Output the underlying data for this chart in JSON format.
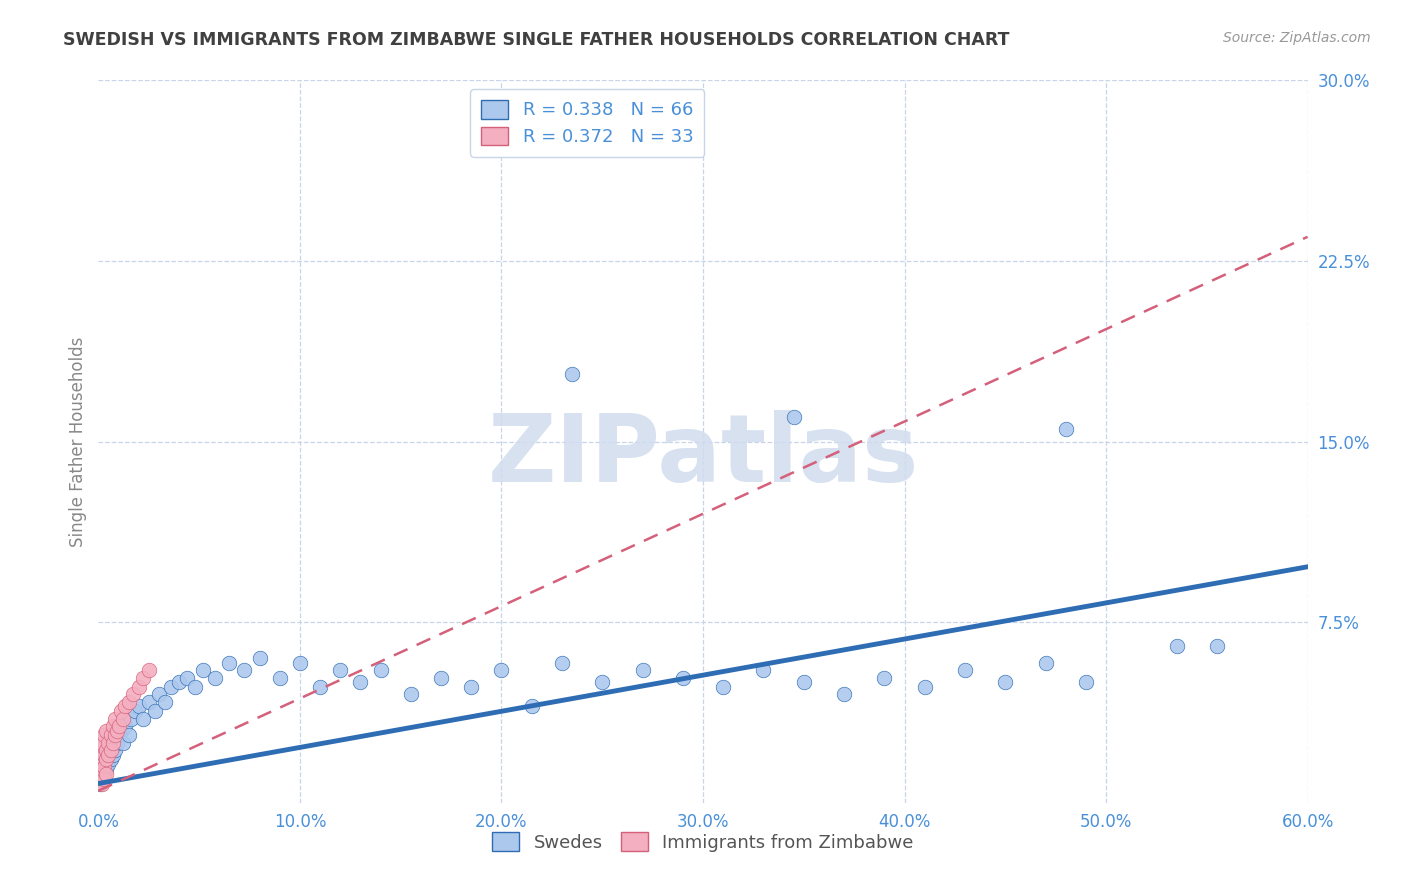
{
  "title": "SWEDISH VS IMMIGRANTS FROM ZIMBABWE SINGLE FATHER HOUSEHOLDS CORRELATION CHART",
  "source": "Source: ZipAtlas.com",
  "ylabel": "Single Father Households",
  "R1": 0.338,
  "N1": 66,
  "R2": 0.372,
  "N2": 33,
  "legend_label_1": "Swedes",
  "legend_label_2": "Immigrants from Zimbabwe",
  "color1": "#adc8ed",
  "color2": "#f4afc0",
  "line_color1": "#2e6db4",
  "line_color2": "#d4607a",
  "background_color": "#ffffff",
  "grid_color": "#c8d4e8",
  "title_color": "#404040",
  "axis_color": "#4a90d9",
  "source_color": "#999999",
  "ylabel_color": "#888888",
  "watermark_color": "#d0dcee",
  "xlim": [
    0.0,
    0.6
  ],
  "ylim": [
    0.0,
    0.3
  ],
  "xticks": [
    0.0,
    0.1,
    0.2,
    0.3,
    0.4,
    0.5,
    0.6
  ],
  "yticks": [
    0.075,
    0.15,
    0.225,
    0.3
  ],
  "blue_line_x": [
    0.0,
    0.6
  ],
  "blue_line_y": [
    0.008,
    0.098
  ],
  "pink_line_x": [
    0.0,
    0.6
  ],
  "pink_line_y": [
    0.005,
    0.235
  ],
  "sx": [
    0.001,
    0.001,
    0.002,
    0.002,
    0.003,
    0.003,
    0.004,
    0.004,
    0.005,
    0.005,
    0.006,
    0.007,
    0.008,
    0.009,
    0.01,
    0.011,
    0.012,
    0.013,
    0.015,
    0.016,
    0.018,
    0.02,
    0.022,
    0.025,
    0.028,
    0.03,
    0.033,
    0.036,
    0.04,
    0.044,
    0.048,
    0.052,
    0.058,
    0.065,
    0.072,
    0.08,
    0.09,
    0.1,
    0.11,
    0.12,
    0.13,
    0.14,
    0.155,
    0.17,
    0.185,
    0.2,
    0.215,
    0.23,
    0.25,
    0.27,
    0.29,
    0.31,
    0.33,
    0.35,
    0.37,
    0.39,
    0.41,
    0.43,
    0.45,
    0.47,
    0.49,
    0.535,
    0.555,
    0.235,
    0.345,
    0.48
  ],
  "sy": [
    0.008,
    0.012,
    0.01,
    0.015,
    0.012,
    0.018,
    0.014,
    0.02,
    0.016,
    0.022,
    0.018,
    0.02,
    0.022,
    0.025,
    0.028,
    0.03,
    0.025,
    0.032,
    0.028,
    0.035,
    0.038,
    0.04,
    0.035,
    0.042,
    0.038,
    0.045,
    0.042,
    0.048,
    0.05,
    0.052,
    0.048,
    0.055,
    0.052,
    0.058,
    0.055,
    0.06,
    0.052,
    0.058,
    0.048,
    0.055,
    0.05,
    0.055,
    0.045,
    0.052,
    0.048,
    0.055,
    0.04,
    0.058,
    0.05,
    0.055,
    0.052,
    0.048,
    0.055,
    0.05,
    0.045,
    0.052,
    0.048,
    0.055,
    0.05,
    0.058,
    0.05,
    0.065,
    0.065,
    0.178,
    0.16,
    0.155
  ],
  "zx": [
    0.001,
    0.001,
    0.001,
    0.002,
    0.002,
    0.002,
    0.003,
    0.003,
    0.003,
    0.004,
    0.004,
    0.004,
    0.005,
    0.005,
    0.006,
    0.006,
    0.007,
    0.007,
    0.008,
    0.008,
    0.009,
    0.01,
    0.011,
    0.012,
    0.013,
    0.015,
    0.017,
    0.02,
    0.022,
    0.025,
    0.002,
    0.003,
    0.004
  ],
  "zy": [
    0.01,
    0.015,
    0.022,
    0.012,
    0.018,
    0.025,
    0.015,
    0.02,
    0.028,
    0.018,
    0.022,
    0.03,
    0.02,
    0.025,
    0.022,
    0.028,
    0.025,
    0.032,
    0.028,
    0.035,
    0.03,
    0.032,
    0.038,
    0.035,
    0.04,
    0.042,
    0.045,
    0.048,
    0.052,
    0.055,
    0.008,
    0.01,
    0.012
  ]
}
